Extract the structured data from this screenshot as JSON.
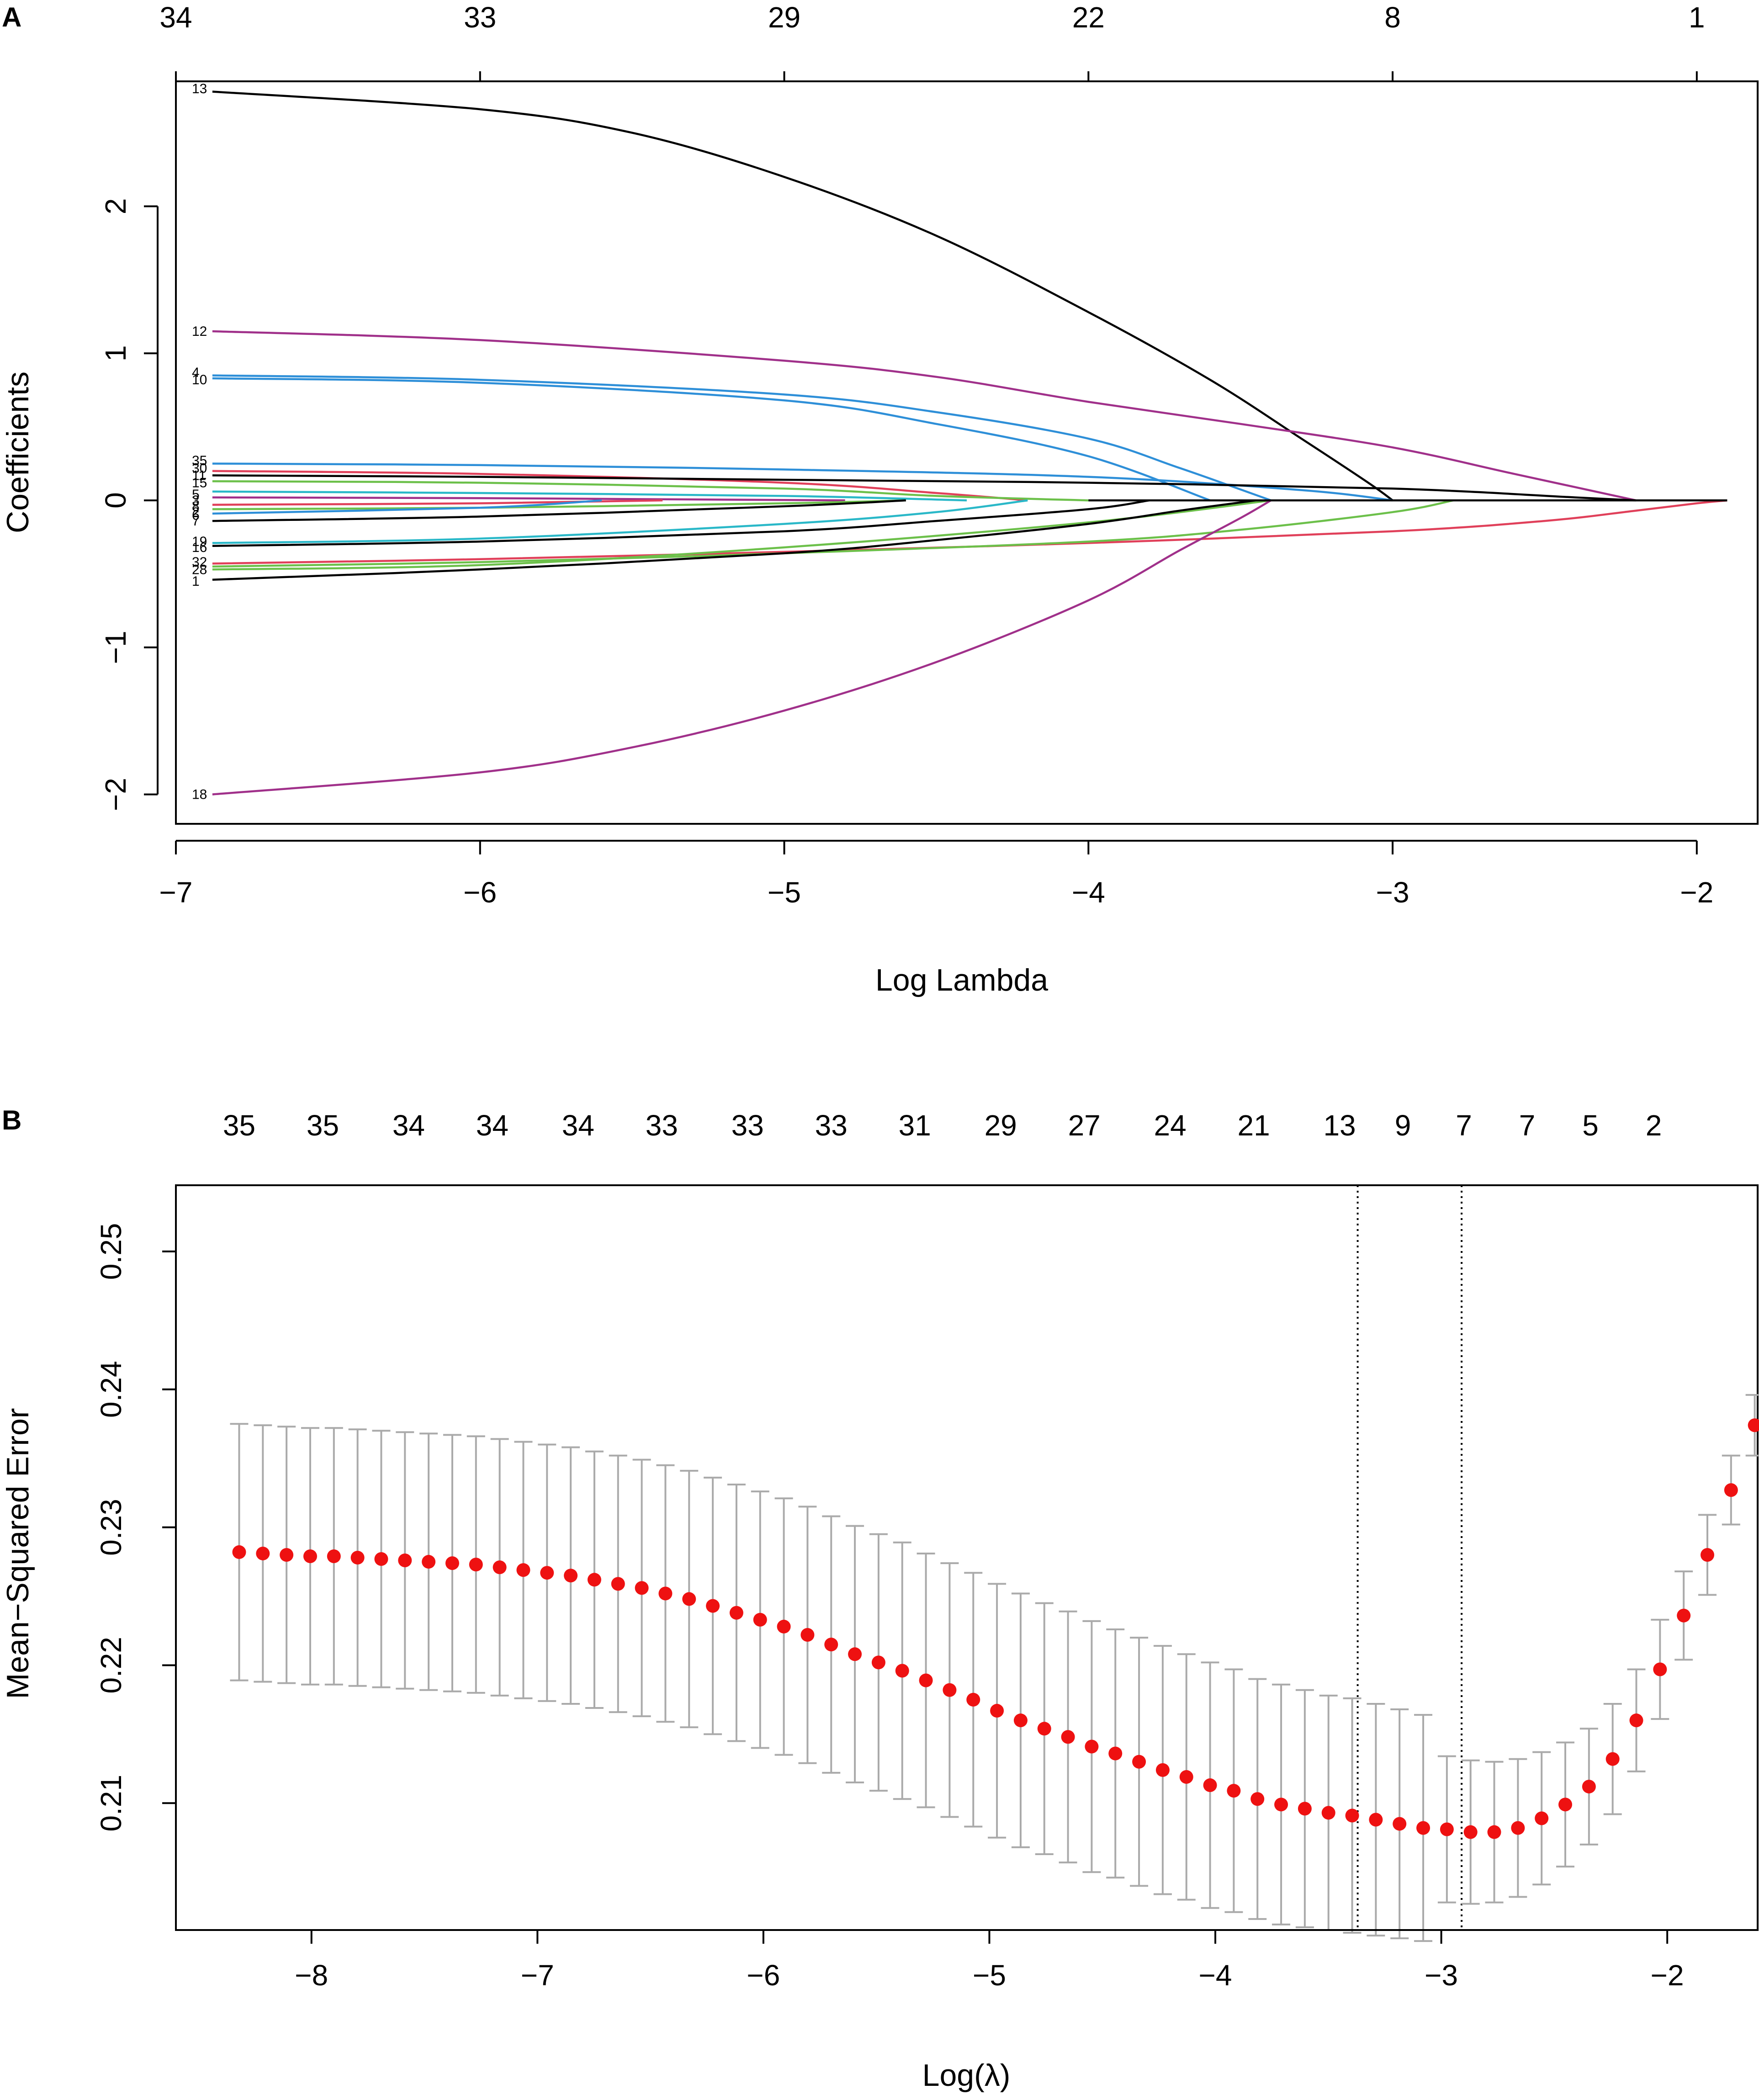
{
  "chart_data": [
    {
      "panel": "A",
      "type": "line",
      "xlabel": "Log Lambda",
      "ylabel": "Coefficients",
      "xlim": [
        -7,
        -1.8
      ],
      "ylim": [
        -2.2,
        2.85
      ],
      "x_ticks": [
        -7,
        -6,
        -5,
        -4,
        -3,
        -2
      ],
      "x_tick_labels": [
        "−7",
        "−6",
        "−5",
        "−4",
        "−3",
        "−2"
      ],
      "y_ticks": [
        -2,
        -1,
        0,
        1,
        2
      ],
      "y_tick_labels": [
        "−2",
        "−1",
        "0",
        "1",
        "2"
      ],
      "top_ticks": [
        -7,
        -6,
        -5,
        -4,
        -3,
        -2
      ],
      "top_labels": [
        "34",
        "33",
        "29",
        "22",
        "8",
        "1"
      ],
      "series": [
        {
          "name": "13",
          "color": "#000000",
          "x": [
            -6.88,
            -6.0,
            -5.5,
            -5.0,
            -4.5,
            -4.0,
            -3.6,
            -3.3,
            -3.08,
            -3.0
          ],
          "y": [
            2.78,
            2.66,
            2.5,
            2.2,
            1.8,
            1.28,
            0.82,
            0.42,
            0.12,
            0.0
          ]
        },
        {
          "name": "12",
          "color": "#a0308a",
          "x": [
            -6.88,
            -6.0,
            -5.0,
            -4.5,
            -4.0,
            -3.5,
            -3.0,
            -2.6,
            -2.2
          ],
          "y": [
            1.15,
            1.09,
            0.95,
            0.84,
            0.67,
            0.52,
            0.36,
            0.18,
            0.0
          ]
        },
        {
          "name": "4",
          "color": "#2e8fd8",
          "x": [
            -6.88,
            -6.0,
            -5.0,
            -4.5,
            -4.0,
            -3.7,
            -3.4
          ],
          "y": [
            0.85,
            0.82,
            0.72,
            0.6,
            0.42,
            0.22,
            0.0
          ]
        },
        {
          "name": "10",
          "color": "#2e8fd8",
          "x": [
            -6.88,
            -6.0,
            -5.0,
            -4.5,
            -4.0,
            -3.6
          ],
          "y": [
            0.83,
            0.8,
            0.68,
            0.52,
            0.3,
            0.0
          ]
        },
        {
          "name": "35",
          "color": "#2e8fd8",
          "x": [
            -6.88,
            -6.0,
            -5.0,
            -4.0,
            -3.3,
            -3.0
          ],
          "y": [
            0.25,
            0.24,
            0.21,
            0.16,
            0.07,
            0.0
          ]
        },
        {
          "name": "30",
          "color": "#e0405a",
          "x": [
            -6.88,
            -6.0,
            -5.0,
            -4.5,
            -4.2
          ],
          "y": [
            0.2,
            0.18,
            0.12,
            0.05,
            0.0
          ]
        },
        {
          "name": "11",
          "color": "#000000",
          "x": [
            -6.88,
            -6.0,
            -5.0,
            -4.0,
            -3.0,
            -2.4,
            -2.2
          ],
          "y": [
            0.17,
            0.16,
            0.14,
            0.12,
            0.08,
            0.02,
            0.0
          ]
        },
        {
          "name": "15",
          "color": "#6cc04a",
          "x": [
            -6.88,
            -6.0,
            -5.0,
            -4.5,
            -4.0
          ],
          "y": [
            0.13,
            0.12,
            0.08,
            0.03,
            0.0
          ]
        },
        {
          "name": "5",
          "color": "#2ab8c8",
          "x": [
            -6.88,
            -6.0,
            -5.0,
            -4.4
          ],
          "y": [
            0.06,
            0.05,
            0.03,
            0.0
          ]
        },
        {
          "name": "3",
          "color": "#a0308a",
          "x": [
            -6.88,
            -6.0,
            -5.2,
            -4.8
          ],
          "y": [
            0.02,
            0.015,
            0.005,
            0.0
          ]
        },
        {
          "name": "8",
          "color": "#e0405a",
          "x": [
            -6.88,
            -6.0,
            -5.4
          ],
          "y": [
            -0.03,
            -0.02,
            0.0
          ]
        },
        {
          "name": "2",
          "color": "#6cc04a",
          "x": [
            -6.88,
            -6.0,
            -5.0,
            -4.6
          ],
          "y": [
            -0.06,
            -0.05,
            -0.02,
            0.0
          ]
        },
        {
          "name": "6",
          "color": "#2e8fd8",
          "x": [
            -6.88,
            -6.0,
            -5.6
          ],
          "y": [
            -0.09,
            -0.05,
            0.0
          ]
        },
        {
          "name": "7",
          "color": "#000000",
          "x": [
            -6.88,
            -6.0,
            -5.0,
            -4.6
          ],
          "y": [
            -0.14,
            -0.11,
            -0.04,
            0.0
          ]
        },
        {
          "name": "19",
          "color": "#2ab8c8",
          "x": [
            -6.88,
            -6.0,
            -5.0,
            -4.5,
            -4.2
          ],
          "y": [
            -0.29,
            -0.26,
            -0.16,
            -0.08,
            0.0
          ]
        },
        {
          "name": "16",
          "color": "#000000",
          "x": [
            -6.88,
            -6.0,
            -5.0,
            -4.5,
            -4.0,
            -3.8
          ],
          "y": [
            -0.31,
            -0.28,
            -0.21,
            -0.14,
            -0.06,
            0.0
          ]
        },
        {
          "name": "32",
          "color": "#e0405a",
          "x": [
            -6.88,
            -6.0,
            -5.0,
            -4.0,
            -3.0,
            -2.5,
            -2.2,
            -2.0,
            -1.9
          ],
          "y": [
            -0.43,
            -0.4,
            -0.35,
            -0.29,
            -0.21,
            -0.14,
            -0.07,
            -0.02,
            0.0
          ]
        },
        {
          "name": "28",
          "color": "#6cc04a",
          "x": [
            -6.88,
            -6.0,
            -5.0,
            -4.0,
            -3.4
          ],
          "y": [
            -0.47,
            -0.44,
            -0.32,
            -0.15,
            0.0
          ]
        },
        {
          "name": "34",
          "color": "#6cc04a",
          "x": [
            -6.88,
            -6.0,
            -5.0,
            -4.0,
            -3.5,
            -3.0,
            -2.8
          ],
          "y": [
            -0.45,
            -0.42,
            -0.36,
            -0.28,
            -0.2,
            -0.08,
            0.0
          ]
        },
        {
          "name": "1",
          "color": "#000000",
          "x": [
            -6.88,
            -6.0,
            -5.0,
            -4.5,
            -4.0,
            -3.7,
            -3.45
          ],
          "y": [
            -0.54,
            -0.47,
            -0.36,
            -0.27,
            -0.16,
            -0.07,
            0.0
          ]
        },
        {
          "name": "18",
          "color": "#a0308a",
          "x": [
            -6.88,
            -6.0,
            -5.5,
            -5.0,
            -4.5,
            -4.0,
            -3.7,
            -3.5,
            -3.4
          ],
          "y": [
            -2.0,
            -1.85,
            -1.68,
            -1.43,
            -1.1,
            -0.68,
            -0.34,
            -0.12,
            0.0
          ]
        },
        {
          "name": "",
          "color": "#000000",
          "x": [
            -4.0,
            -3.0,
            -2.3,
            -1.9
          ],
          "y": [
            0.0,
            0.0,
            0.0,
            0.0
          ]
        }
      ],
      "curve_labels": [
        {
          "text": "13",
          "y": 2.8
        },
        {
          "text": "12",
          "y": 1.15
        },
        {
          "text": "4",
          "y": 0.87
        },
        {
          "text": "10",
          "y": 0.82
        },
        {
          "text": "35",
          "y": 0.27
        },
        {
          "text": "30",
          "y": 0.22
        },
        {
          "text": "11",
          "y": 0.17
        },
        {
          "text": "15",
          "y": 0.12
        },
        {
          "text": "5",
          "y": 0.04
        },
        {
          "text": "3",
          "y": 0.0
        },
        {
          "text": "8",
          "y": -0.04
        },
        {
          "text": "2",
          "y": -0.08
        },
        {
          "text": "6",
          "y": -0.1
        },
        {
          "text": "7",
          "y": -0.14
        },
        {
          "text": "19",
          "y": -0.28
        },
        {
          "text": "16",
          "y": -0.32
        },
        {
          "text": "32",
          "y": -0.42
        },
        {
          "text": "28",
          "y": -0.47
        },
        {
          "text": "1",
          "y": -0.55
        },
        {
          "text": "18",
          "y": -2.0
        }
      ]
    },
    {
      "panel": "B",
      "type": "scatter",
      "xlabel": "Log(λ)",
      "ylabel": "Mean−Squared Error",
      "xlim": [
        -8.6,
        -1.6
      ],
      "ylim": [
        0.2008,
        0.2548
      ],
      "x_ticks": [
        -8,
        -7,
        -6,
        -5,
        -4,
        -3,
        -2
      ],
      "x_tick_labels": [
        "−8",
        "−7",
        "−6",
        "−5",
        "−4",
        "−3",
        "−2"
      ],
      "y_ticks": [
        0.21,
        0.22,
        0.23,
        0.24,
        0.25
      ],
      "y_tick_labels": [
        "0.21",
        "0.22",
        "0.23",
        "0.24",
        "0.25"
      ],
      "top_ticks": [
        -8.32,
        -7.95,
        -7.57,
        -7.2,
        -6.82,
        -6.45,
        -6.07,
        -5.7,
        -5.33,
        -4.95,
        -4.58,
        -4.2,
        -3.83,
        -3.45,
        -3.17,
        -2.9,
        -2.62,
        -2.34,
        -2.06
      ],
      "top_labels": [
        "35",
        "35",
        "34",
        "34",
        "34",
        "33",
        "33",
        "33",
        "31",
        "29",
        "27",
        "24",
        "21",
        "13",
        "9",
        "7",
        "7",
        "5",
        "2"
      ],
      "vlines": [
        -3.37,
        -2.91
      ],
      "point_color": "#ee1111",
      "errorbar_color": "#aaaaaa",
      "x_start": -8.32,
      "x_step": 0.1048,
      "mse": [
        0.2282,
        0.2281,
        0.228,
        0.2279,
        0.2279,
        0.2278,
        0.2277,
        0.2276,
        0.2275,
        0.2274,
        0.2273,
        0.2271,
        0.2269,
        0.2267,
        0.2265,
        0.2262,
        0.2259,
        0.2256,
        0.2252,
        0.2248,
        0.2243,
        0.2238,
        0.2233,
        0.2228,
        0.2222,
        0.2215,
        0.2208,
        0.2202,
        0.2196,
        0.2189,
        0.2182,
        0.2175,
        0.2167,
        0.216,
        0.2154,
        0.2148,
        0.2141,
        0.2136,
        0.213,
        0.2124,
        0.2119,
        0.2113,
        0.2109,
        0.2103,
        0.2099,
        0.2096,
        0.2093,
        0.2091,
        0.2088,
        0.2085,
        0.2082,
        0.2081,
        0.2079,
        0.2079,
        0.2082,
        0.2089,
        0.2099,
        0.2112,
        0.2132,
        0.216,
        0.2197,
        0.2236,
        0.228,
        0.2327,
        0.2374,
        0.2412,
        0.2446,
        0.2479,
        0.2509
      ],
      "se": [
        0.0093,
        0.0093,
        0.0093,
        0.0093,
        0.0093,
        0.0093,
        0.0093,
        0.0093,
        0.0093,
        0.0093,
        0.0093,
        0.0093,
        0.0093,
        0.0093,
        0.0093,
        0.0093,
        0.0093,
        0.0093,
        0.0093,
        0.0093,
        0.0093,
        0.0093,
        0.0093,
        0.0093,
        0.0093,
        0.0093,
        0.0093,
        0.0093,
        0.0093,
        0.0092,
        0.0092,
        0.0092,
        0.0092,
        0.0092,
        0.0091,
        0.0091,
        0.0091,
        0.009,
        0.009,
        0.009,
        0.0089,
        0.0089,
        0.0088,
        0.0087,
        0.0087,
        0.0086,
        0.0085,
        0.0085,
        0.0084,
        0.0083,
        0.0082,
        0.0053,
        0.0052,
        0.0051,
        0.005,
        0.0048,
        0.0045,
        0.0042,
        0.004,
        0.0037,
        0.0036,
        0.0032,
        0.0029,
        0.0025,
        0.0022,
        0.002,
        0.0019,
        0.002,
        0.0021
      ]
    }
  ],
  "panels": {
    "a": {
      "letter": "A",
      "xlabel": "Log Lambda",
      "ylabel": "Coefficients"
    },
    "b": {
      "letter": "B",
      "xlabel": "Log(λ)",
      "ylabel": "Mean−Squared Error"
    }
  }
}
